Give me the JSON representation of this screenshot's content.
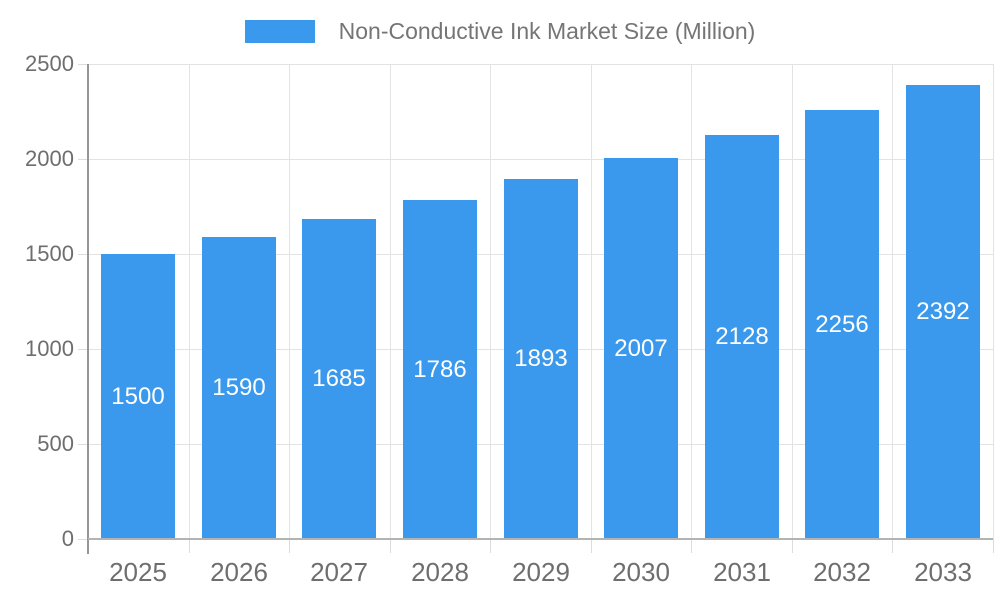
{
  "chart_data": {
    "type": "bar",
    "title": "Non-Conductive Ink Market Size (Million)",
    "categories": [
      "2025",
      "2026",
      "2027",
      "2028",
      "2029",
      "2030",
      "2031",
      "2032",
      "2033"
    ],
    "values": [
      1500,
      1590,
      1685,
      1786,
      1893,
      2007,
      2128,
      2256,
      2392
    ],
    "series_name": "Non-Conductive Ink Market Size (Million)",
    "xlabel": "",
    "ylabel": "",
    "ylim": [
      0,
      2500
    ],
    "yticks": [
      0,
      500,
      1000,
      1500,
      2000,
      2500
    ],
    "grid": true,
    "legend_position": "top-center",
    "bar_labels_visible": true,
    "bar_label_position": "center",
    "colors": {
      "bar": "#3A99EC",
      "bar_label": "#FFFFFF",
      "axis_text": "#6E6E6E",
      "legend_text": "#757575",
      "gridline": "#E3E3E3",
      "tick": "#DCDCDC",
      "y_axis_line": "#969696",
      "x_axis_line": "#B3B3B3",
      "background": "#FFFFFF"
    }
  }
}
